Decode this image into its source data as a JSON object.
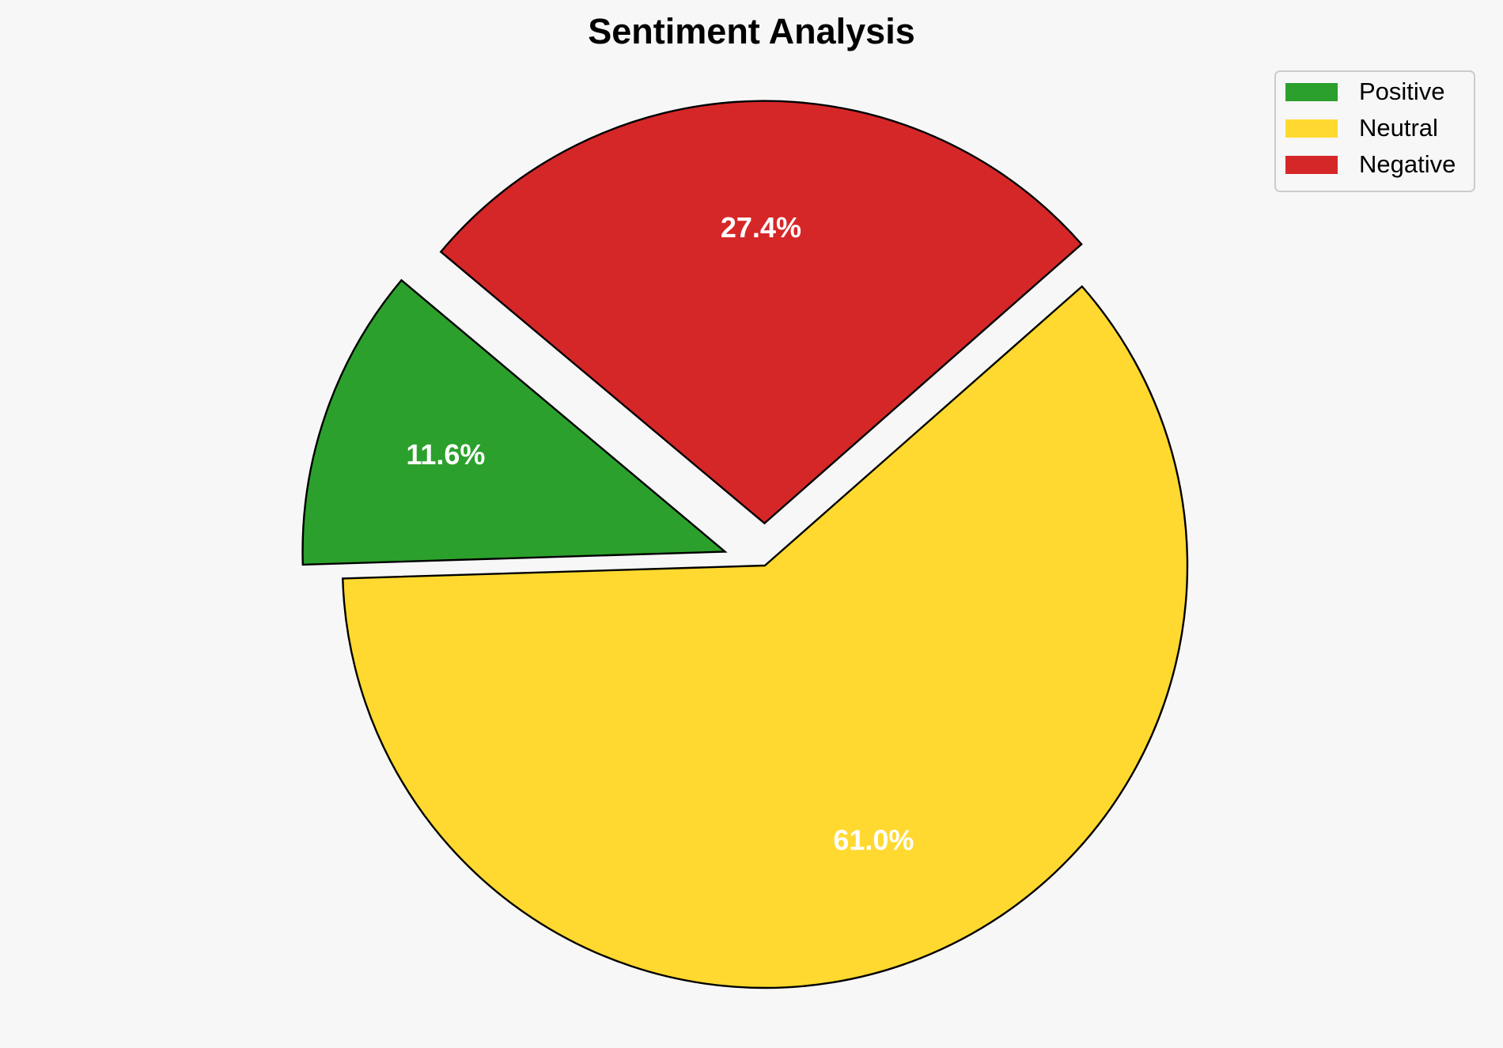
{
  "chart_data": {
    "type": "pie",
    "title": "Sentiment Analysis",
    "categories": [
      "Positive",
      "Neutral",
      "Negative"
    ],
    "values": [
      11.6,
      61.0,
      27.4
    ],
    "data_labels": [
      "11.6%",
      "61.0%",
      "27.4%"
    ],
    "colors": [
      "#2ca02c",
      "#ffd92f",
      "#d62728"
    ],
    "explode": [
      0.1,
      0,
      0.1
    ],
    "start_angle_deg": 140,
    "direction": "counterclockwise",
    "legend_position": "top-right",
    "background": "#f7f7f7"
  }
}
